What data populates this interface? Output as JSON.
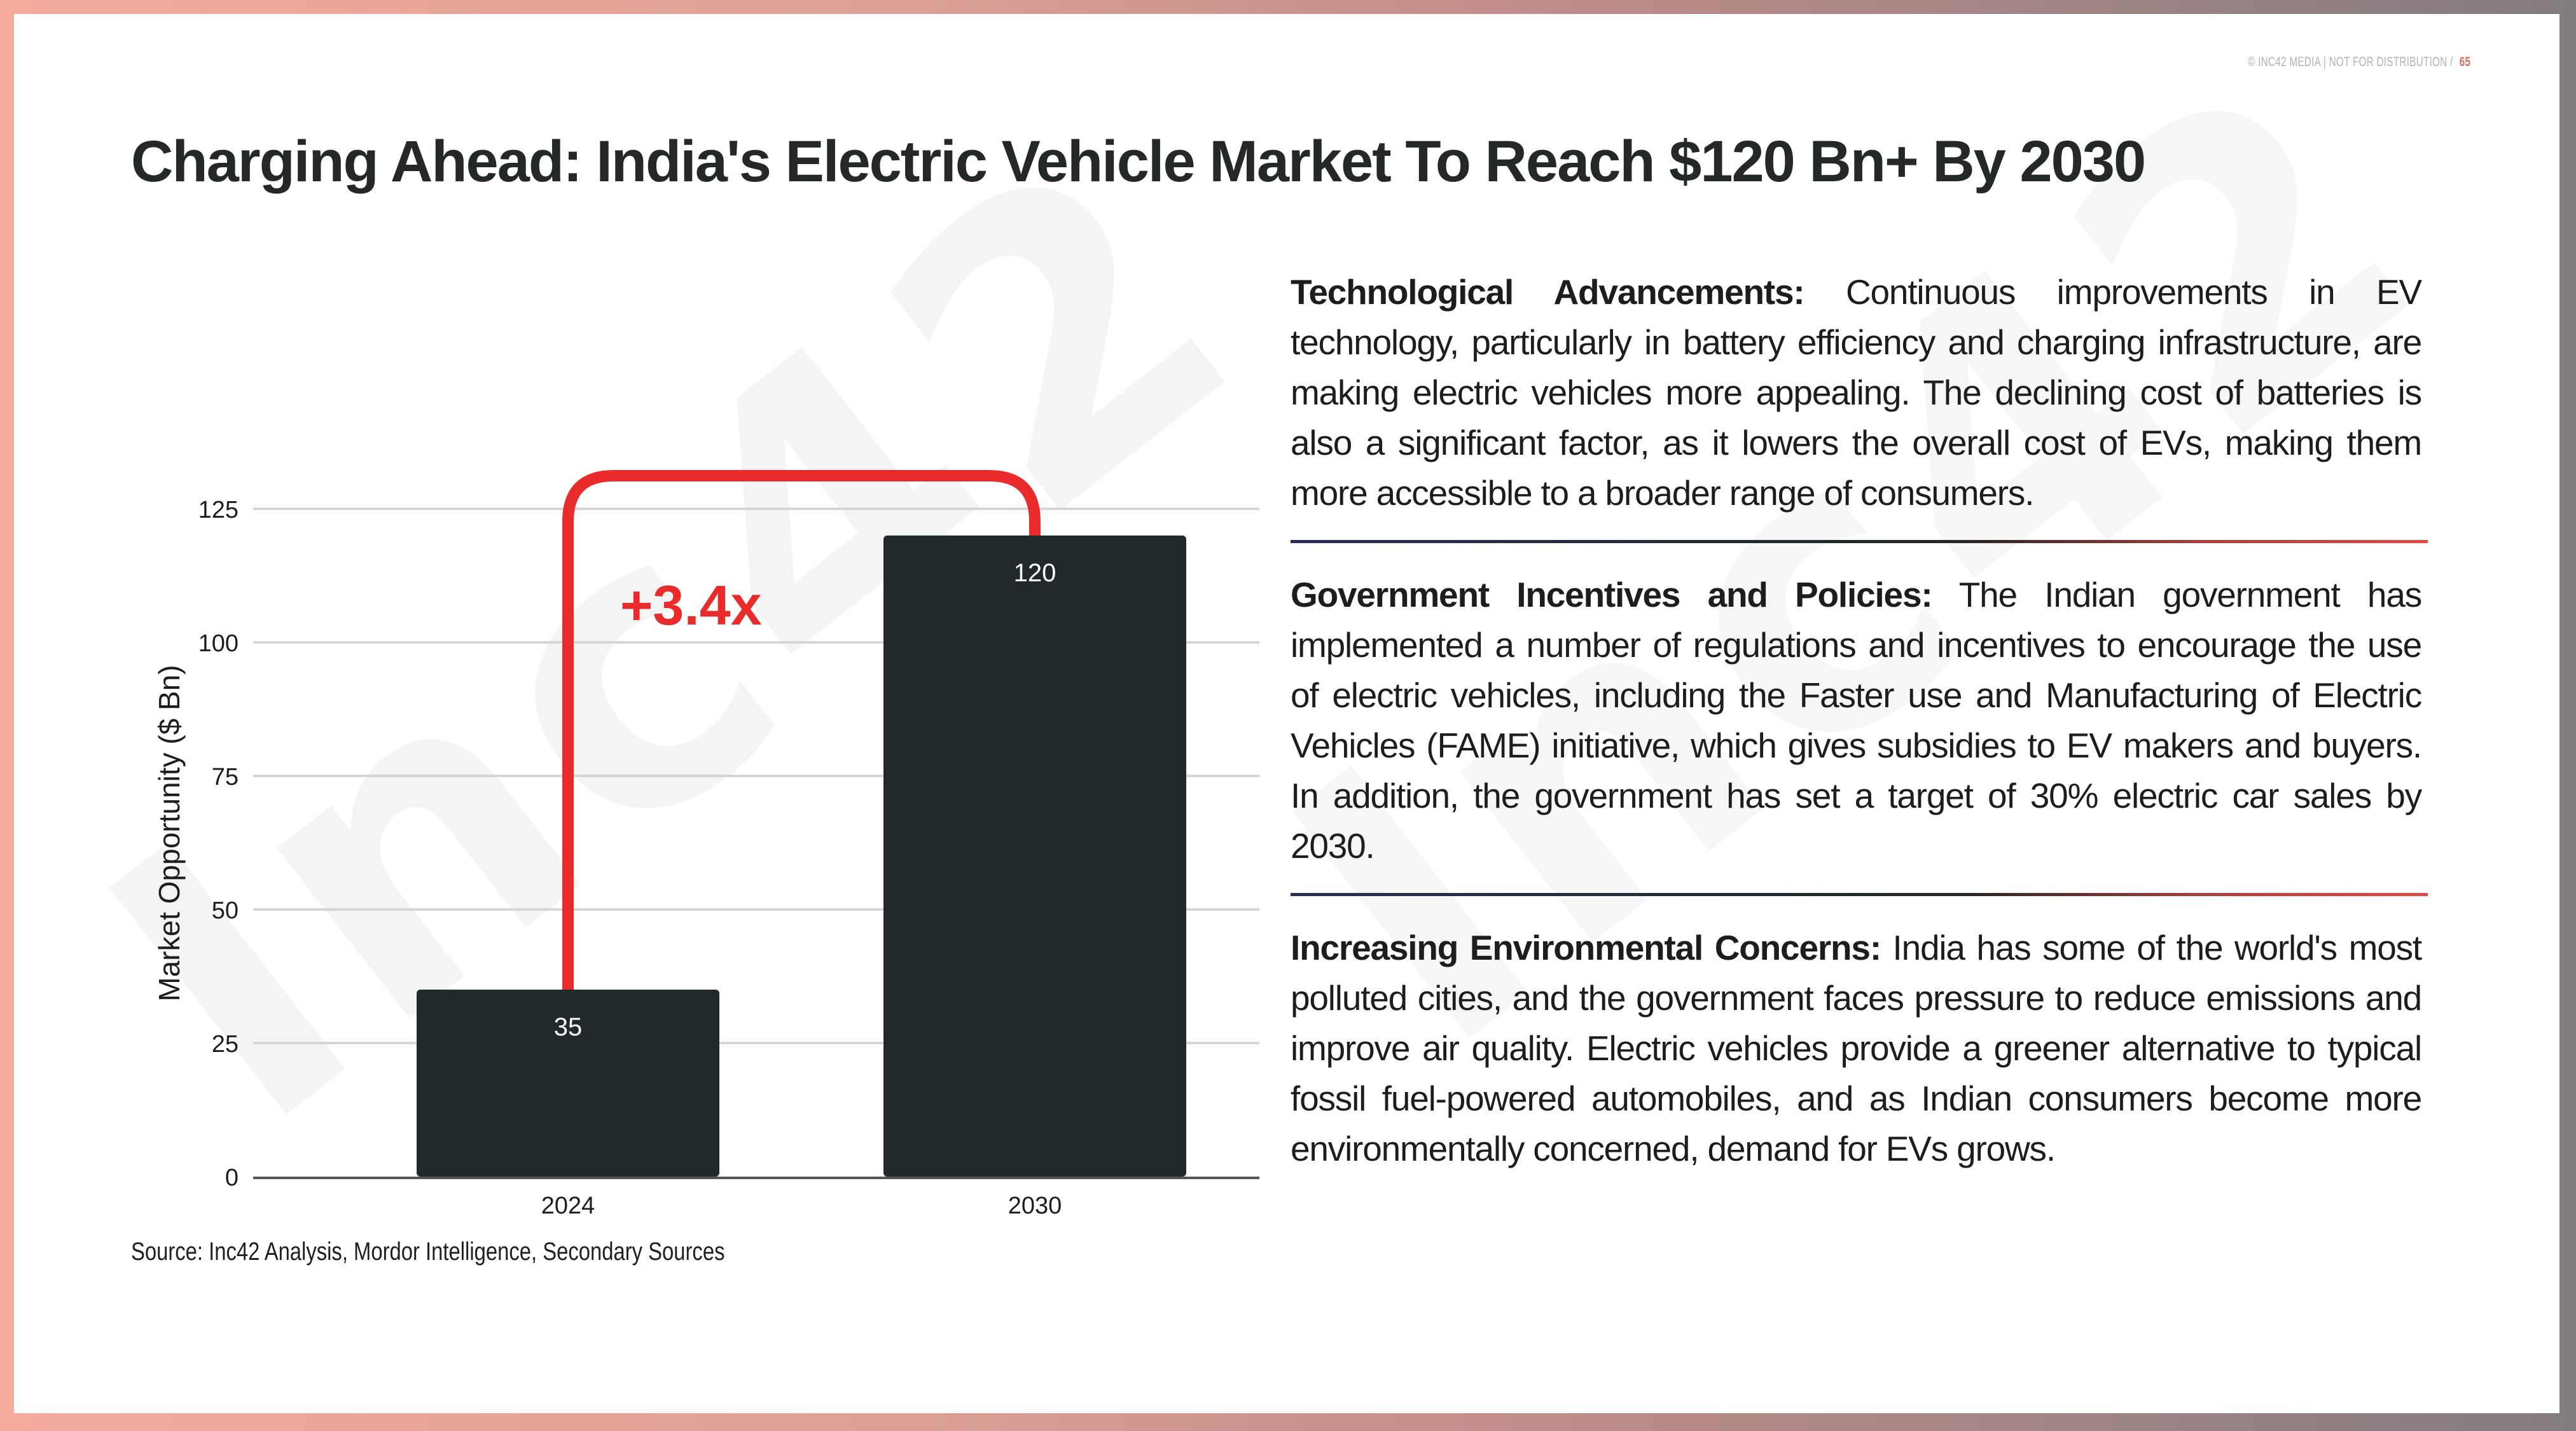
{
  "header": {
    "copyright": "© INC42  MEDIA  |  NOT FOR DISTRIBUTION  /",
    "page_number": "65",
    "title": "Charging Ahead: India's Electric Vehicle Market To Reach $120 Bn+ By 2030",
    "watermark": "Inc42"
  },
  "chart_data": {
    "type": "bar",
    "categories": [
      "2024",
      "2030"
    ],
    "values": [
      35,
      120
    ],
    "value_labels": [
      "35",
      "120"
    ],
    "title": "",
    "xlabel": "",
    "ylabel": "Market Opportunity ($ Bn)",
    "ylim": [
      0,
      125
    ],
    "yticks": [
      0,
      25,
      50,
      75,
      100,
      125
    ],
    "ytick_labels": [
      "0",
      "25",
      "50",
      "75",
      "100",
      "125"
    ],
    "grid": true,
    "legend": "none",
    "annotation": {
      "text": "+3.4x",
      "from": "2024",
      "to": "2030",
      "type": "growth-bracket"
    },
    "colors": {
      "bar": "#22292b",
      "annotation": "#ea2b2b",
      "grid": "#d6d6d6",
      "axis": "#555555"
    }
  },
  "source": "Source: Inc42 Analysis, Mordor Intelligence, Secondary Sources",
  "sections": [
    {
      "heading": "Technological Advancements:",
      "body": "Continuous improvements in EV technology, particularly in battery efficiency and charging infrastructure, are making electric vehicles more appealing. The declining cost of batteries is also a significant factor, as it lowers the overall cost of EVs, making them more accessible to a broader range of consumers."
    },
    {
      "heading": "Government Incentives and Policies:",
      "body": "The Indian government has implemented a number of regulations and incentives to encourage the use of electric vehicles, including the Faster use and Manufacturing of Electric Vehicles (FAME) initiative, which gives subsidies to EV makers and buyers. In addition, the government has set a target of 30% electric car sales by 2030."
    },
    {
      "heading": "Increasing Environmental Concerns:",
      "body": "India has some of the world's most polluted cities, and the government faces pressure to reduce emissions and improve air quality. Electric vehicles provide a greener alternative to typical fossil fuel-powered automobiles, and as Indian consumers become more environmentally concerned, demand for EVs grows."
    }
  ]
}
